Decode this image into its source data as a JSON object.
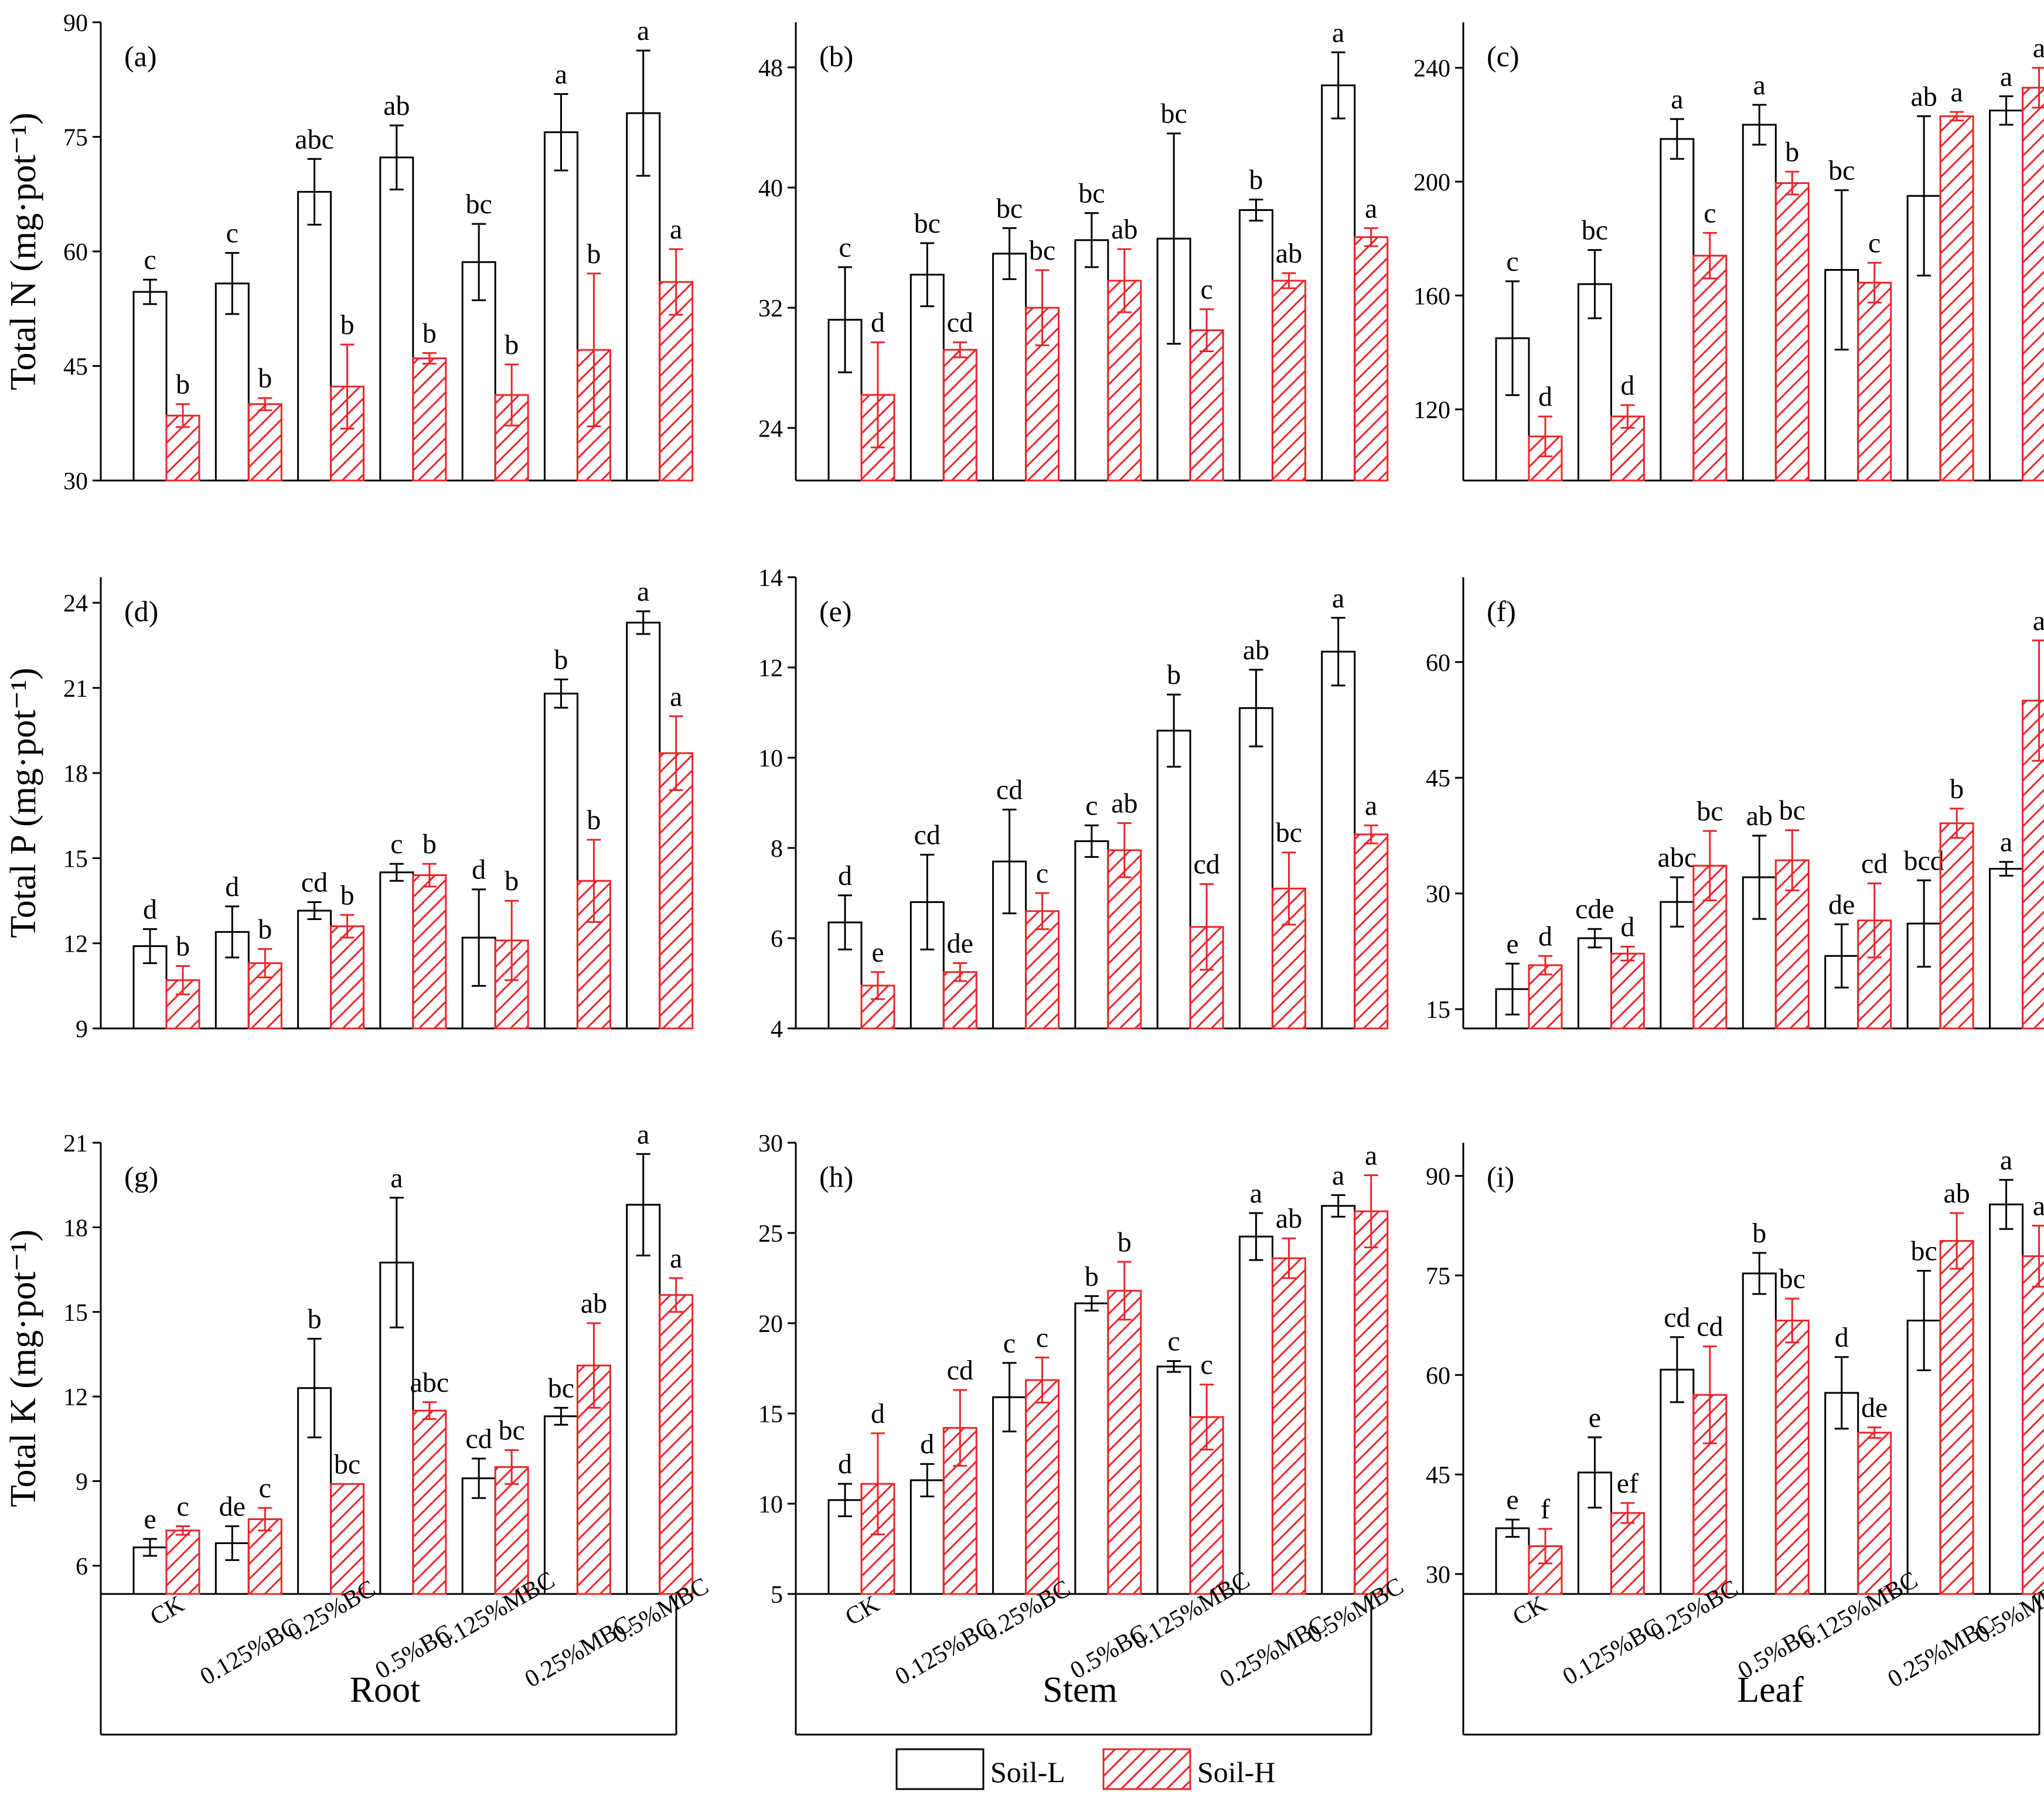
{
  "colors": {
    "soil_l_edge": "#000000",
    "soil_h_edge": "#e8262b",
    "axis": "#000000",
    "background": "#ffffff"
  },
  "categories": [
    "CK",
    "0.125%BC",
    "0.25%BC",
    "0.5%BC",
    "0.125%MBC",
    "0.25%MBC",
    "0.5%MBC"
  ],
  "column_labels": [
    "Root",
    "Stem",
    "Leaf"
  ],
  "legend": {
    "soil_l": "Soil-L",
    "soil_h": "Soil-H"
  },
  "chart_data": [
    {
      "type": "bar",
      "panel": "(a)",
      "organ": "Root",
      "ylabel": "Total N (mg·pot⁻¹)",
      "yticks": [
        30,
        45,
        60,
        75,
        90
      ],
      "ylim": [
        30,
        90
      ],
      "series": [
        {
          "name": "Soil-L",
          "values": [
            54.7,
            55.8,
            67.8,
            72.3,
            58.6,
            75.6,
            78.1
          ],
          "errors": [
            1.6,
            4.0,
            4.3,
            4.2,
            5.0,
            5.0,
            8.2
          ],
          "letters": [
            "c",
            "c",
            "abc",
            "ab",
            "bc",
            "a",
            "a"
          ]
        },
        {
          "name": "Soil-H",
          "values": [
            38.5,
            40.0,
            42.3,
            46.0,
            41.2,
            47.1,
            56.0
          ],
          "errors": [
            1.5,
            0.8,
            5.5,
            0.7,
            4.0,
            10.0,
            4.3
          ],
          "letters": [
            "b",
            "b",
            "b",
            "b",
            "b",
            "b",
            "a"
          ]
        }
      ]
    },
    {
      "type": "bar",
      "panel": "(b)",
      "organ": "Stem",
      "ylabel": "",
      "yticks": [
        24,
        32,
        40,
        48
      ],
      "ylim": [
        20.5,
        51
      ],
      "series": [
        {
          "name": "Soil-L",
          "values": [
            31.2,
            34.2,
            35.6,
            36.5,
            36.6,
            38.5,
            46.8
          ],
          "errors": [
            3.5,
            2.1,
            1.7,
            1.8,
            7.0,
            0.7,
            2.2
          ],
          "letters": [
            "c",
            "bc",
            "bc",
            "bc",
            "bc",
            "b",
            "a"
          ]
        },
        {
          "name": "Soil-H",
          "values": [
            26.2,
            29.2,
            32.0,
            33.8,
            30.5,
            33.8,
            36.7
          ],
          "errors": [
            3.5,
            0.5,
            2.5,
            2.1,
            1.4,
            0.5,
            0.6
          ],
          "letters": [
            "d",
            "cd",
            "bc",
            "ab",
            "c",
            "ab",
            "a"
          ]
        }
      ]
    },
    {
      "type": "bar",
      "panel": "(c)",
      "organ": "Leaf",
      "ylabel": "",
      "yticks": [
        120,
        160,
        200,
        240
      ],
      "ylim": [
        95,
        256
      ],
      "series": [
        {
          "name": "Soil-L",
          "values": [
            145,
            164,
            215,
            220,
            169,
            195,
            225
          ],
          "errors": [
            20,
            12,
            7,
            7,
            28,
            28,
            5
          ],
          "letters": [
            "c",
            "bc",
            "a",
            "a",
            "bc",
            "ab",
            "a"
          ]
        },
        {
          "name": "Soil-H",
          "values": [
            110.5,
            117.5,
            174,
            199.5,
            164.5,
            223,
            233
          ],
          "errors": [
            7,
            4,
            8,
            4,
            7,
            1.5,
            7
          ],
          "letters": [
            "d",
            "d",
            "c",
            "b",
            "c",
            "a",
            "a"
          ]
        }
      ]
    },
    {
      "type": "bar",
      "panel": "(d)",
      "organ": "Root",
      "ylabel": "Total P (mg·pot⁻¹)",
      "yticks": [
        9,
        12,
        15,
        18,
        21,
        24
      ],
      "ylim": [
        9,
        24.9
      ],
      "series": [
        {
          "name": "Soil-L",
          "values": [
            11.9,
            12.4,
            13.15,
            14.5,
            12.2,
            20.8,
            23.3
          ],
          "errors": [
            0.6,
            0.9,
            0.3,
            0.3,
            1.7,
            0.5,
            0.4
          ],
          "letters": [
            "d",
            "d",
            "cd",
            "c",
            "d",
            "b",
            "a"
          ]
        },
        {
          "name": "Soil-H",
          "values": [
            10.7,
            11.3,
            12.6,
            14.4,
            12.1,
            14.2,
            18.7
          ],
          "errors": [
            0.5,
            0.5,
            0.4,
            0.4,
            1.4,
            1.45,
            1.3
          ],
          "letters": [
            "b",
            "b",
            "b",
            "b",
            "b",
            "b",
            "a"
          ]
        }
      ]
    },
    {
      "type": "bar",
      "panel": "(e)",
      "organ": "Stem",
      "ylabel": "",
      "yticks": [
        4,
        6,
        8,
        10,
        12,
        14
      ],
      "ylim": [
        4,
        14
      ],
      "series": [
        {
          "name": "Soil-L",
          "values": [
            6.35,
            6.8,
            7.7,
            8.15,
            10.6,
            11.1,
            12.35
          ],
          "errors": [
            0.6,
            1.05,
            1.15,
            0.35,
            0.8,
            0.85,
            0.75
          ],
          "letters": [
            "d",
            "cd",
            "cd",
            "c",
            "b",
            "ab",
            "a"
          ]
        },
        {
          "name": "Soil-H",
          "values": [
            4.95,
            5.25,
            6.6,
            7.95,
            6.25,
            7.1,
            8.3
          ],
          "errors": [
            0.3,
            0.2,
            0.4,
            0.6,
            0.95,
            0.8,
            0.2
          ],
          "letters": [
            "e",
            "de",
            "c",
            "ab",
            "cd",
            "bc",
            "a"
          ]
        }
      ]
    },
    {
      "type": "bar",
      "panel": "(f)",
      "organ": "Leaf",
      "ylabel": "",
      "yticks": [
        15,
        30,
        45,
        60
      ],
      "ylim": [
        12.5,
        71
      ],
      "series": [
        {
          "name": "Soil-L",
          "values": [
            17.6,
            24.2,
            28.9,
            32.1,
            21.9,
            26.1,
            33.2
          ],
          "errors": [
            3.3,
            1.2,
            3.2,
            5.4,
            4.1,
            5.6,
            0.9
          ],
          "letters": [
            "e",
            "cde",
            "abc",
            "ab",
            "de",
            "bcd",
            "a"
          ]
        },
        {
          "name": "Soil-H",
          "values": [
            20.7,
            22.2,
            33.6,
            34.3,
            26.5,
            39.1,
            55.0
          ],
          "errors": [
            1.2,
            0.9,
            4.5,
            3.9,
            4.8,
            1.9,
            7.8
          ],
          "letters": [
            "d",
            "d",
            "bc",
            "bc",
            "cd",
            "b",
            "a"
          ]
        }
      ]
    },
    {
      "type": "bar",
      "panel": "(g)",
      "organ": "Root",
      "ylabel": "Total K (mg·pot⁻¹)",
      "yticks": [
        6,
        9,
        12,
        15,
        18,
        21
      ],
      "ylim": [
        5,
        21
      ],
      "series": [
        {
          "name": "Soil-L",
          "values": [
            6.65,
            6.8,
            12.3,
            16.75,
            9.1,
            11.3,
            18.8
          ],
          "errors": [
            0.3,
            0.6,
            1.75,
            2.3,
            0.7,
            0.3,
            1.8
          ],
          "letters": [
            "e",
            "de",
            "b",
            "a",
            "cd",
            "bc",
            "a"
          ]
        },
        {
          "name": "Soil-H",
          "values": [
            7.25,
            7.65,
            8.9,
            11.5,
            9.5,
            13.1,
            15.6
          ],
          "errors": [
            0.15,
            0.4,
            0.0,
            0.3,
            0.6,
            1.5,
            0.6
          ],
          "letters": [
            "c",
            "c",
            "bc",
            "abc",
            "bc",
            "ab",
            "a"
          ]
        }
      ]
    },
    {
      "type": "bar",
      "panel": "(h)",
      "organ": "Stem",
      "ylabel": "",
      "yticks": [
        5,
        10,
        15,
        20,
        25,
        30
      ],
      "ylim": [
        5,
        30
      ],
      "series": [
        {
          "name": "Soil-L",
          "values": [
            10.2,
            11.3,
            15.9,
            21.1,
            17.6,
            24.8,
            26.5
          ],
          "errors": [
            0.9,
            0.9,
            1.9,
            0.4,
            0.3,
            1.3,
            0.6
          ],
          "letters": [
            "d",
            "d",
            "c",
            "b",
            "c",
            "a",
            "a"
          ]
        },
        {
          "name": "Soil-H",
          "values": [
            11.1,
            14.2,
            16.85,
            21.8,
            14.8,
            23.6,
            26.2
          ],
          "errors": [
            2.8,
            2.1,
            1.25,
            1.6,
            1.8,
            1.1,
            2.0
          ],
          "letters": [
            "d",
            "cd",
            "c",
            "b",
            "c",
            "ab",
            "a"
          ]
        }
      ]
    },
    {
      "type": "bar",
      "panel": "(i)",
      "organ": "Leaf",
      "ylabel": "",
      "yticks": [
        30,
        45,
        60,
        75,
        90
      ],
      "ylim": [
        27,
        95
      ],
      "series": [
        {
          "name": "Soil-L",
          "values": [
            36.9,
            45.3,
            60.8,
            75.3,
            57.3,
            68.2,
            85.7
          ],
          "errors": [
            1.3,
            5.3,
            4.9,
            3.1,
            5.4,
            7.5,
            3.7
          ],
          "letters": [
            "e",
            "e",
            "cd",
            "b",
            "d",
            "bc",
            "a"
          ]
        },
        {
          "name": "Soil-H",
          "values": [
            34.2,
            39.2,
            57.0,
            68.2,
            51.3,
            80.2,
            77.9
          ],
          "errors": [
            2.6,
            1.5,
            7.3,
            3.3,
            0.8,
            4.2,
            4.6
          ],
          "letters": [
            "f",
            "ef",
            "cd",
            "bc",
            "de",
            "ab",
            "a"
          ]
        }
      ]
    }
  ]
}
